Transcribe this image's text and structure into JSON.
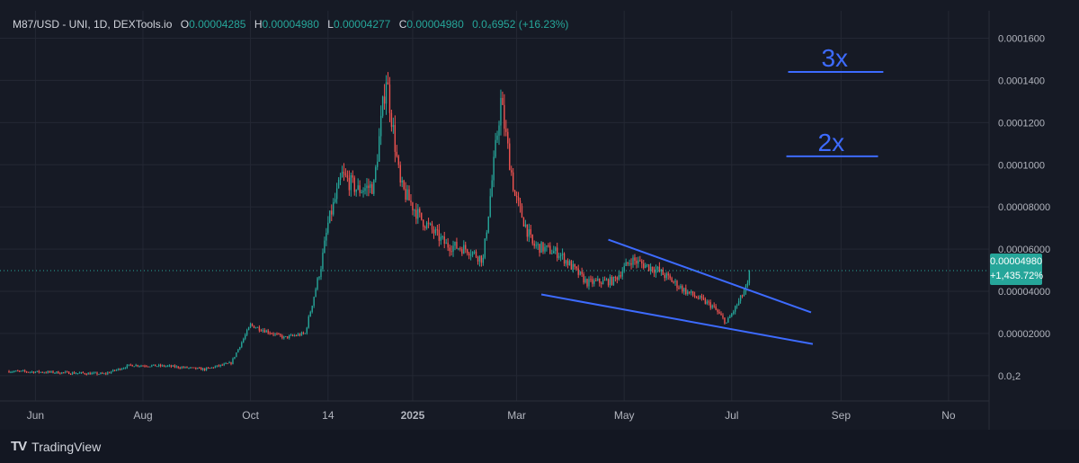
{
  "header": {
    "symbol": "M87/USD - UNI, 1D, DEXTools.io",
    "open_label": "O",
    "open_value": "0.00004285",
    "high_label": "H",
    "high_value": "0.00004980",
    "low_label": "L",
    "low_value": "0.00004277",
    "close_label": "C",
    "close_value": "0.00004980",
    "change": "0.0₄6952 (+16.23%)"
  },
  "price_tag": {
    "price": "0.00004980",
    "change_pct": "+1,435.72%"
  },
  "annotations": {
    "target_3x": "3x",
    "target_2x": "2x"
  },
  "footer": {
    "brand": "TradingView",
    "logo_mark": "TV"
  },
  "colors": {
    "up": "#26a69a",
    "down": "#ef5350",
    "trendline": "#3d6bff",
    "background": "#161a25",
    "grid": "#242834"
  },
  "chart_data": {
    "type": "candlestick",
    "title": "M87/USD - UNI, 1D, DEXTools.io",
    "y_ticks": [
      "0.0₁2",
      "0.00002000",
      "0.00004000",
      "0.00006000",
      "0.00008000",
      "0.0001000",
      "0.0001200",
      "0.0001400",
      "0.0001600"
    ],
    "y_tick_values": [
      0,
      2e-05,
      4e-05,
      6e-05,
      8e-05,
      0.0001,
      0.00012,
      0.00014,
      0.00016
    ],
    "ylim": [
      -1.2e-05,
      0.000173
    ],
    "x_ticks": [
      "Jun",
      "Aug",
      "Oct",
      "14",
      "2025",
      "Mar",
      "May",
      "Jul",
      "Sep",
      "No"
    ],
    "x_tick_dates": [
      "2024-06-01",
      "2024-08-01",
      "2024-10-01",
      "2024-11-14",
      "2025-01-01",
      "2025-03-01",
      "2025-05-01",
      "2025-07-01",
      "2025-09-01",
      "2025-11-01"
    ],
    "xlim": [
      "2024-05-17",
      "2025-11-24"
    ],
    "grid": true,
    "last_price": 4.98e-05,
    "close_path": [
      [
        "2024-05-17",
        2.1e-06
      ],
      [
        "2024-06-15",
        1.5e-06
      ],
      [
        "2024-07-10",
        8e-07
      ],
      [
        "2024-07-25",
        5e-06
      ],
      [
        "2024-08-15",
        4.5e-06
      ],
      [
        "2024-09-05",
        3e-06
      ],
      [
        "2024-09-20",
        6e-06
      ],
      [
        "2024-10-01",
        2.4e-05
      ],
      [
        "2024-10-20",
        1.8e-05
      ],
      [
        "2024-11-01",
        2e-05
      ],
      [
        "2024-11-10",
        5.2e-05
      ],
      [
        "2024-11-14",
        7.2e-05
      ],
      [
        "2024-11-22",
        9.5e-05
      ],
      [
        "2024-12-01",
        8.8e-05
      ],
      [
        "2024-12-10",
        9e-05
      ],
      [
        "2024-12-17",
        0.000142
      ],
      [
        "2024-12-25",
        9e-05
      ],
      [
        "2025-01-05",
        7.5e-05
      ],
      [
        "2025-01-20",
        6.2e-05
      ],
      [
        "2025-02-01",
        6e-05
      ],
      [
        "2025-02-10",
        5.5e-05
      ],
      [
        "2025-02-20",
        0.00013
      ],
      [
        "2025-02-28",
        8.5e-05
      ],
      [
        "2025-03-10",
        6.2e-05
      ],
      [
        "2025-03-25",
        5.8e-05
      ],
      [
        "2025-04-10",
        4.4e-05
      ],
      [
        "2025-04-25",
        4.5e-05
      ],
      [
        "2025-05-05",
        5.5e-05
      ],
      [
        "2025-05-20",
        5e-05
      ],
      [
        "2025-06-05",
        4e-05
      ],
      [
        "2025-06-20",
        3.3e-05
      ],
      [
        "2025-06-28",
        2.5e-05
      ],
      [
        "2025-07-05",
        3.5e-05
      ],
      [
        "2025-07-10",
        4.28e-05
      ],
      [
        "2025-07-11",
        4.98e-05
      ]
    ],
    "trendlines": [
      {
        "points": [
          [
            "2025-04-22",
            6.45e-05
          ],
          [
            "2025-08-15",
            3e-05
          ]
        ]
      },
      {
        "points": [
          [
            "2025-03-15",
            3.85e-05
          ],
          [
            "2025-08-16",
            1.5e-05
          ]
        ]
      },
      {
        "label": "3x",
        "points": [
          [
            "2025-08-02",
            0.000144
          ],
          [
            "2025-09-25",
            0.000144
          ]
        ]
      },
      {
        "label": "2x",
        "points": [
          [
            "2025-08-01",
            0.000104
          ],
          [
            "2025-09-22",
            0.000104
          ]
        ]
      }
    ]
  }
}
